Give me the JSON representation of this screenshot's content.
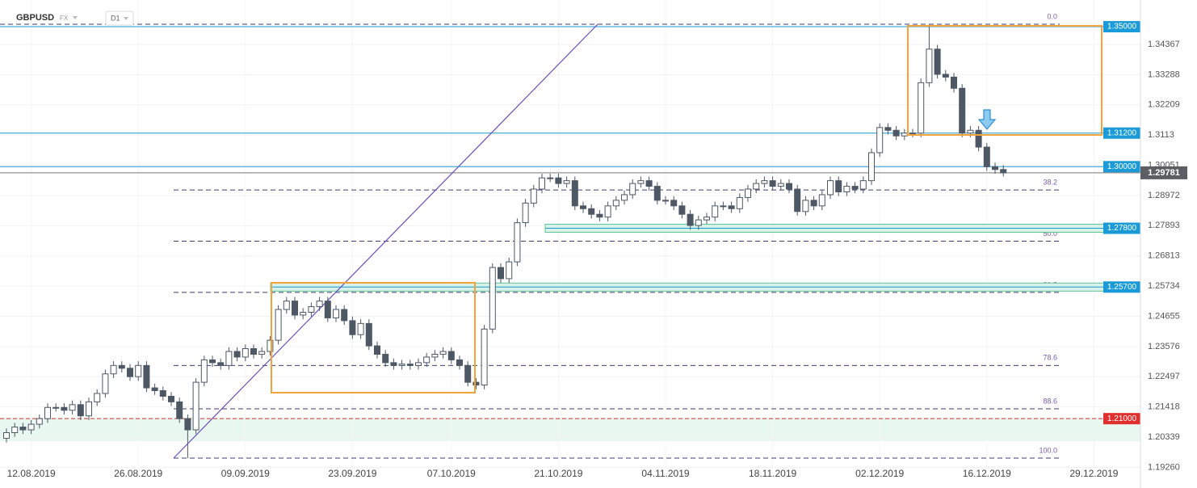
{
  "chart_data": {
    "type": "candlestick",
    "title": "GBPUSD",
    "market": "FX",
    "timeframe": "D1",
    "categories": [
      null,
      null,
      null,
      "12.08.2019",
      null,
      null,
      null,
      null,
      null,
      null,
      null,
      null,
      null,
      null,
      null,
      null,
      "26.08.2019",
      null,
      null,
      null,
      null,
      null,
      null,
      null,
      null,
      null,
      null,
      null,
      null,
      "09.09.2019",
      null,
      null,
      null,
      null,
      null,
      null,
      null,
      null,
      null,
      null,
      null,
      null,
      "23.09.2019",
      null,
      null,
      null,
      null,
      null,
      null,
      null,
      null,
      null,
      null,
      null,
      "07.10.2019",
      null,
      null,
      null,
      null,
      null,
      null,
      null,
      null,
      null,
      null,
      null,
      null,
      "21.10.2019",
      null,
      null,
      null,
      null,
      null,
      null,
      null,
      null,
      null,
      null,
      null,
      null,
      "04.11.2019",
      null,
      null,
      null,
      null,
      null,
      null,
      null,
      null,
      null,
      null,
      null,
      null,
      "18.11.2019",
      null,
      null,
      null,
      null,
      null,
      null,
      null,
      null,
      null,
      null,
      null,
      null,
      "02.12.2019",
      null,
      null,
      null,
      null,
      null,
      null,
      null,
      null,
      null,
      null,
      null,
      null,
      "16.12.2019",
      null,
      null,
      null,
      null,
      null,
      null,
      null,
      null,
      null,
      null,
      null,
      null,
      "29.12.2019"
    ],
    "open": [
      1.203,
      1.205,
      1.207,
      1.206,
      1.208,
      1.21,
      1.214,
      1.214,
      1.213,
      1.215,
      1.211,
      1.216,
      1.219,
      1.226,
      1.229,
      1.228,
      1.225,
      1.229,
      1.221,
      1.22,
      1.218,
      1.216,
      1.21,
      1.206,
      1.223,
      1.231,
      1.23,
      1.229,
      1.234,
      1.232,
      1.235,
      1.233,
      1.234,
      1.238,
      1.249,
      1.252,
      1.247,
      1.248,
      1.25,
      1.252,
      1.246,
      1.249,
      1.245,
      1.24,
      1.244,
      1.236,
      1.233,
      1.23,
      1.229,
      1.2295,
      1.229,
      1.23,
      1.232,
      1.233,
      1.234,
      1.231,
      1.229,
      1.223,
      1.222,
      1.242,
      1.264,
      1.26,
      1.266,
      1.28,
      1.287,
      1.292,
      1.296,
      1.296,
      1.294,
      1.295,
      1.286,
      1.285,
      1.283,
      1.282,
      1.286,
      1.288,
      1.29,
      1.294,
      1.295,
      1.293,
      1.288,
      1.288,
      1.286,
      1.283,
      1.279,
      1.281,
      1.282,
      1.286,
      1.286,
      1.285,
      1.289,
      1.292,
      1.294,
      1.295,
      1.293,
      1.294,
      1.292,
      1.284,
      1.288,
      1.286,
      1.29,
      1.295,
      1.291,
      1.293,
      1.292,
      1.295,
      1.305,
      1.314,
      1.313,
      1.311,
      1.312,
      1.312,
      1.33,
      1.342,
      1.333,
      1.332,
      1.328,
      1.312,
      1.313,
      1.307,
      1.3,
      1.299,
      null,
      null,
      null,
      null,
      null,
      null,
      null,
      null,
      null,
      null,
      null
    ],
    "high": [
      1.2065,
      1.2085,
      1.2085,
      1.2095,
      1.2115,
      1.2155,
      1.2155,
      1.2155,
      1.2165,
      1.2165,
      1.2175,
      1.2205,
      1.2275,
      1.2305,
      1.2305,
      1.2295,
      1.2305,
      1.2305,
      1.2225,
      1.2215,
      1.2195,
      1.2175,
      1.2115,
      1.2245,
      1.2325,
      1.2325,
      1.2315,
      1.2355,
      1.2355,
      1.2365,
      1.2365,
      1.2355,
      1.2395,
      1.2505,
      1.2535,
      1.2535,
      1.2495,
      1.2515,
      1.2535,
      1.2535,
      1.2505,
      1.2505,
      1.2465,
      1.2455,
      1.2455,
      1.2375,
      1.2345,
      1.2315,
      1.231,
      1.231,
      1.2315,
      1.2335,
      1.2345,
      1.2355,
      1.2355,
      1.2325,
      1.2305,
      1.2245,
      1.2435,
      1.2655,
      1.2655,
      1.2675,
      1.2815,
      1.2885,
      1.2935,
      1.2975,
      1.2975,
      1.2975,
      1.2965,
      1.2965,
      1.2875,
      1.2865,
      1.2845,
      1.2875,
      1.2895,
      1.2915,
      1.2955,
      1.2965,
      1.2965,
      1.2945,
      1.2895,
      1.2895,
      1.2875,
      1.2845,
      1.2825,
      1.2835,
      1.2875,
      1.2875,
      1.2875,
      1.2905,
      1.2935,
      1.2955,
      1.2965,
      1.2965,
      1.2955,
      1.2955,
      1.2935,
      1.2895,
      1.2895,
      1.2915,
      1.2965,
      1.2965,
      1.2945,
      1.2945,
      1.2965,
      1.3065,
      1.3155,
      1.3155,
      1.3145,
      1.3135,
      1.3135,
      1.3315,
      1.3509,
      1.3435,
      1.3345,
      1.3335,
      1.3295,
      1.3145,
      1.3145,
      1.3085,
      1.3015,
      1.3005,
      null,
      null,
      null,
      null,
      null,
      null,
      null,
      null,
      null,
      null,
      null
    ],
    "low": [
      1.2015,
      1.2035,
      1.2045,
      1.2045,
      1.2065,
      1.2085,
      1.2125,
      1.2115,
      1.2115,
      1.2095,
      1.2095,
      1.2145,
      1.2175,
      1.2245,
      1.2265,
      1.2235,
      1.2235,
      1.2195,
      1.2185,
      1.2165,
      1.2145,
      1.2085,
      1.1959,
      1.2045,
      1.2215,
      1.2285,
      1.2275,
      1.2275,
      1.2305,
      1.2305,
      1.2315,
      1.2315,
      1.2325,
      1.2365,
      1.2475,
      1.2455,
      1.2455,
      1.2465,
      1.2485,
      1.2445,
      1.2445,
      1.2435,
      1.2385,
      1.2385,
      1.2345,
      1.2315,
      1.2285,
      1.2275,
      1.2275,
      1.2275,
      1.2275,
      1.2285,
      1.2305,
      1.2315,
      1.2295,
      1.2275,
      1.2215,
      1.2205,
      1.2205,
      1.2405,
      1.2585,
      1.2585,
      1.2645,
      1.2785,
      1.2855,
      1.2905,
      1.2945,
      1.2925,
      1.2925,
      1.2845,
      1.2835,
      1.2815,
      1.2805,
      1.2805,
      1.2845,
      1.2865,
      1.2885,
      1.2925,
      1.2915,
      1.2865,
      1.2865,
      1.2845,
      1.2815,
      1.2775,
      1.2775,
      1.2795,
      1.2805,
      1.2845,
      1.2835,
      1.2835,
      1.2875,
      1.2905,
      1.2925,
      1.2915,
      1.2915,
      1.2905,
      1.2825,
      1.2825,
      1.2845,
      1.2845,
      1.2885,
      1.2895,
      1.2895,
      1.2905,
      1.2905,
      1.2935,
      1.3035,
      1.3115,
      1.3095,
      1.3095,
      1.3105,
      1.3105,
      1.3285,
      1.3315,
      1.3305,
      1.3265,
      1.3105,
      1.3105,
      1.3055,
      1.2985,
      1.2975,
      1.2965,
      null,
      null,
      null,
      null,
      null,
      null,
      null,
      null,
      null,
      null,
      null
    ],
    "close": [
      1.205,
      1.207,
      1.206,
      1.208,
      1.21,
      1.214,
      1.214,
      1.213,
      1.215,
      1.211,
      1.216,
      1.219,
      1.226,
      1.229,
      1.228,
      1.225,
      1.229,
      1.221,
      1.22,
      1.218,
      1.216,
      1.21,
      1.206,
      1.223,
      1.231,
      1.23,
      1.229,
      1.234,
      1.232,
      1.235,
      1.233,
      1.234,
      1.238,
      1.249,
      1.252,
      1.247,
      1.248,
      1.25,
      1.252,
      1.246,
      1.249,
      1.245,
      1.24,
      1.244,
      1.236,
      1.233,
      1.23,
      1.229,
      1.2295,
      1.229,
      1.23,
      1.232,
      1.233,
      1.234,
      1.231,
      1.229,
      1.223,
      1.222,
      1.242,
      1.264,
      1.26,
      1.266,
      1.28,
      1.287,
      1.292,
      1.296,
      1.296,
      1.294,
      1.295,
      1.286,
      1.285,
      1.283,
      1.282,
      1.286,
      1.288,
      1.29,
      1.294,
      1.295,
      1.293,
      1.288,
      1.288,
      1.286,
      1.283,
      1.279,
      1.281,
      1.282,
      1.286,
      1.286,
      1.285,
      1.289,
      1.292,
      1.294,
      1.295,
      1.293,
      1.294,
      1.292,
      1.284,
      1.288,
      1.286,
      1.29,
      1.295,
      1.291,
      1.293,
      1.292,
      1.295,
      1.305,
      1.314,
      1.313,
      1.311,
      1.312,
      1.312,
      1.33,
      1.342,
      1.333,
      1.332,
      1.328,
      1.312,
      1.313,
      1.307,
      1.3,
      1.299,
      1.2978,
      null,
      null,
      null,
      null,
      null,
      null,
      null,
      null,
      null,
      null,
      null
    ],
    "up_color": "#ffffff",
    "down_color": "#4d5864",
    "ylim": [
      1.18927,
      1.35954
    ],
    "yticks": [
      1.34367,
      1.33288,
      1.32209,
      1.3113,
      1.30051,
      1.28972,
      1.27893,
      1.26813,
      1.25734,
      1.24655,
      1.23576,
      1.22497,
      1.21418,
      1.20339,
      {
        "value": 1.1926,
        "label": "1.19260"
      }
    ],
    "grid": true,
    "levels": [
      {
        "value": 1.35,
        "label": "1.35000",
        "color": "#1a9ad6"
      },
      {
        "value": 1.312,
        "label": "1.31200",
        "color": "#1a9ad6"
      },
      {
        "value": 1.3,
        "label": "1.30000",
        "color": "#1a9ad6"
      },
      {
        "value": 1.278,
        "label": "1.27800",
        "color": "#1a9ad6"
      },
      {
        "value": 1.257,
        "label": "1.25700",
        "color": "#1a9ad6"
      },
      {
        "value": 1.21,
        "label": "1.21000",
        "color": "#e0302e"
      }
    ],
    "last_price": 1.29781,
    "fib": [
      {
        "label": "0.0",
        "value": 1.3509
      },
      {
        "label": "38.2",
        "value": 1.2917
      },
      {
        "label": "50.0",
        "value": 1.2734
      },
      {
        "label": "61.8",
        "value": 1.2551
      },
      {
        "label": "78.6",
        "value": 1.229
      },
      {
        "label": "88.6",
        "value": 1.2135
      },
      {
        "label": "100.0",
        "value": 1.1959
      }
    ]
  }
}
